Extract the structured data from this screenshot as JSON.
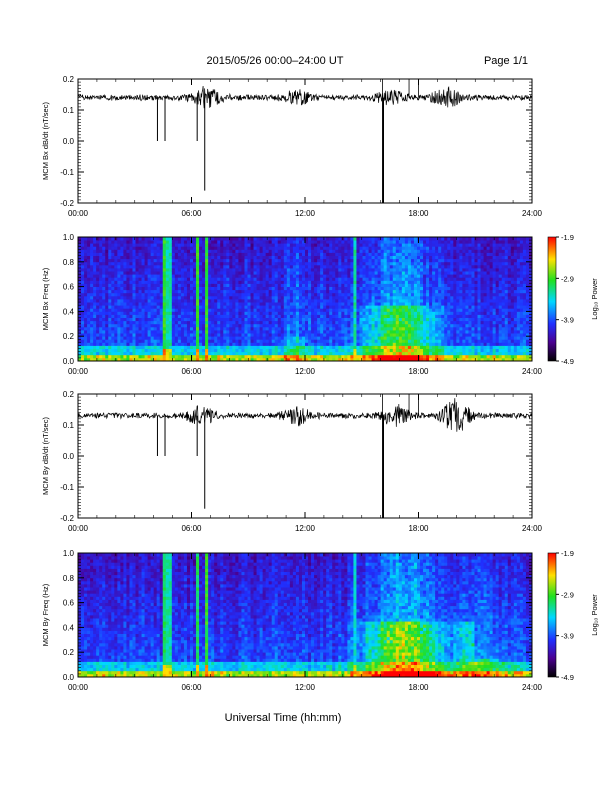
{
  "header": {
    "title": "2015/05/26  00:00–24:00 UT",
    "page": "Page 1/1"
  },
  "footer": {
    "xlabel": "Universal Time (hh:mm)"
  },
  "colorbar": {
    "label": "Log₁₀ Power",
    "ticks": [
      "-1.9",
      "-2.9",
      "-3.9",
      "-4.9"
    ],
    "range": [
      -4.9,
      -1.9
    ]
  },
  "chart_data": [
    {
      "type": "line",
      "ylabel": "MCM Bx dB/dt (nT/sec)",
      "x_ticks": [
        "00:00",
        "06:00",
        "12:00",
        "18:00",
        "24:00"
      ],
      "x_range_hours": [
        0,
        24
      ],
      "y_ticks": [
        "0.2",
        "0.1",
        "0.0",
        "-0.1",
        "-0.2"
      ],
      "ylim": [
        -0.2,
        0.2
      ],
      "baseline": 0.14,
      "noise_bursts": [
        {
          "hour": 6.8,
          "amp": 0.03
        },
        {
          "hour": 11.6,
          "amp": 0.02
        },
        {
          "hour": 16.5,
          "amp": 0.02
        },
        {
          "hour": 19.5,
          "amp": 0.03
        }
      ],
      "spikes": [
        {
          "hour": 4.2,
          "value": 0.0
        },
        {
          "hour": 4.6,
          "value": 0.0
        },
        {
          "hour": 6.3,
          "value": 0.0
        },
        {
          "hour": 6.7,
          "value": -0.16
        },
        {
          "hour": 16.1,
          "value": -0.2
        },
        {
          "hour": 16.15,
          "value": -0.2
        }
      ]
    },
    {
      "type": "heatmap",
      "ylabel": "MCM Bx Freq (Hz)",
      "x_ticks": [
        "00:00",
        "06:00",
        "12:00",
        "18:00",
        "24:00"
      ],
      "x_range_hours": [
        0,
        24
      ],
      "y_ticks": [
        "1.0",
        "0.8",
        "0.6",
        "0.4",
        "0.2",
        "0.0"
      ],
      "ylim": [
        0,
        1.0
      ],
      "bands": [
        {
          "hour": 4.5,
          "level": 0.7
        },
        {
          "hour": 4.8,
          "level": 0.6
        },
        {
          "hour": 6.3,
          "level": 0.7
        },
        {
          "hour": 6.8,
          "level": 0.7
        },
        {
          "hour": 10.3,
          "level": 0.3
        },
        {
          "hour": 14.7,
          "level": 0.6
        }
      ],
      "activity": [
        {
          "hour": 17,
          "width": 3.5,
          "level": 0.35,
          "fmax": 0.45
        },
        {
          "hour": 11.5,
          "width": 1.2,
          "level": 0.15,
          "fmax": 0.2
        }
      ]
    },
    {
      "type": "line",
      "ylabel": "MCM By dB/dt (nT/sec)",
      "x_ticks": [
        "00:00",
        "06:00",
        "12:00",
        "18:00",
        "24:00"
      ],
      "x_range_hours": [
        0,
        24
      ],
      "y_ticks": [
        "0.2",
        "0.1",
        "0.0",
        "-0.1",
        "-0.2"
      ],
      "ylim": [
        -0.2,
        0.2
      ],
      "baseline": 0.13,
      "noise_bursts": [
        {
          "hour": 6.5,
          "amp": 0.03
        },
        {
          "hour": 11.6,
          "amp": 0.025
        },
        {
          "hour": 16.8,
          "amp": 0.03
        },
        {
          "hour": 20.0,
          "amp": 0.05
        }
      ],
      "spikes": [
        {
          "hour": 4.2,
          "value": 0.0
        },
        {
          "hour": 4.6,
          "value": 0.0
        },
        {
          "hour": 6.3,
          "value": 0.0
        },
        {
          "hour": 6.7,
          "value": -0.17
        },
        {
          "hour": 16.1,
          "value": -0.2
        },
        {
          "hour": 16.15,
          "value": -0.2
        }
      ]
    },
    {
      "type": "heatmap",
      "ylabel": "MCM By Freq (Hz)",
      "x_ticks": [
        "00:00",
        "06:00",
        "12:00",
        "18:00",
        "24:00"
      ],
      "x_range_hours": [
        0,
        24
      ],
      "y_ticks": [
        "1.0",
        "0.8",
        "0.6",
        "0.4",
        "0.2",
        "0.0"
      ],
      "ylim": [
        0,
        1.0
      ],
      "bands": [
        {
          "hour": 4.5,
          "level": 0.65
        },
        {
          "hour": 4.8,
          "level": 0.6
        },
        {
          "hour": 6.3,
          "level": 0.65
        },
        {
          "hour": 6.8,
          "level": 0.7
        },
        {
          "hour": 10.3,
          "level": 0.3
        },
        {
          "hour": 14.7,
          "level": 0.55
        }
      ],
      "activity": [
        {
          "hour": 17.2,
          "width": 3.8,
          "level": 0.45,
          "fmax": 0.45
        },
        {
          "hour": 21,
          "width": 3,
          "level": 0.25,
          "fmax": 0.15
        }
      ]
    }
  ]
}
